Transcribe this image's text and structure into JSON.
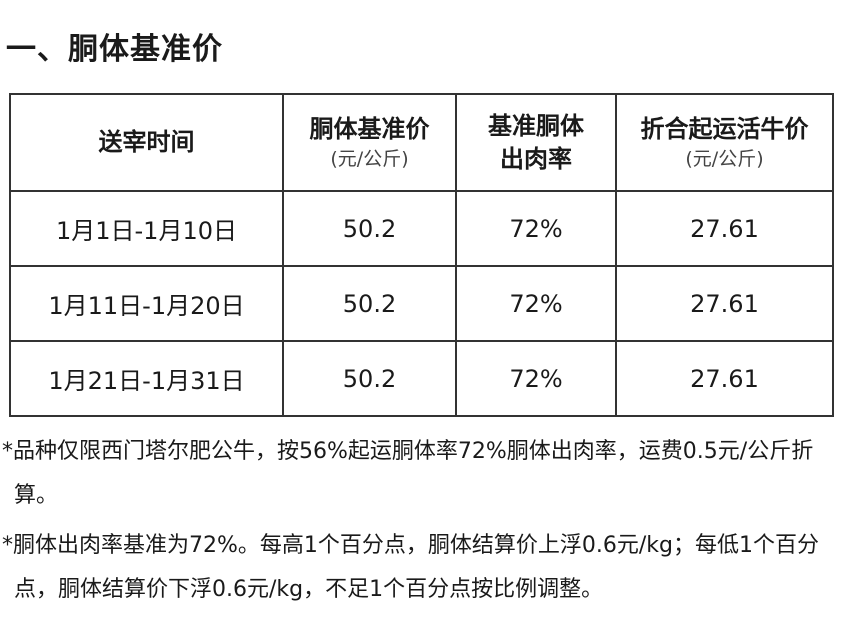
{
  "header": {
    "title": "一、胴体基准价"
  },
  "table": {
    "columns": [
      {
        "lines": [
          "送宰时间"
        ]
      },
      {
        "lines": [
          "胴体基准价"
        ],
        "unit": "(元/公斤)"
      },
      {
        "lines": [
          "基准胴体",
          "出肉率"
        ]
      },
      {
        "lines": [
          "折合起运活牛价"
        ],
        "unit": "(元/公斤)"
      }
    ],
    "rows": [
      [
        "1月1日-1月10日",
        "50.2",
        "72%",
        "27.61"
      ],
      [
        "1月11日-1月20日",
        "50.2",
        "72%",
        "27.61"
      ],
      [
        "1月21日-1月31日",
        "50.2",
        "72%",
        "27.61"
      ]
    ]
  },
  "notes": [
    "*品种仅限西门塔尔肥公牛，按56%起运胴体率72%胴体出肉率，运费0.5元/公斤折算。",
    "*胴体出肉率基准为72%。每高1个百分点，胴体结算价上浮0.6元/kg；每低1个百分点，胴体结算价下浮0.6元/kg，不足1个百分点按比例调整。"
  ]
}
